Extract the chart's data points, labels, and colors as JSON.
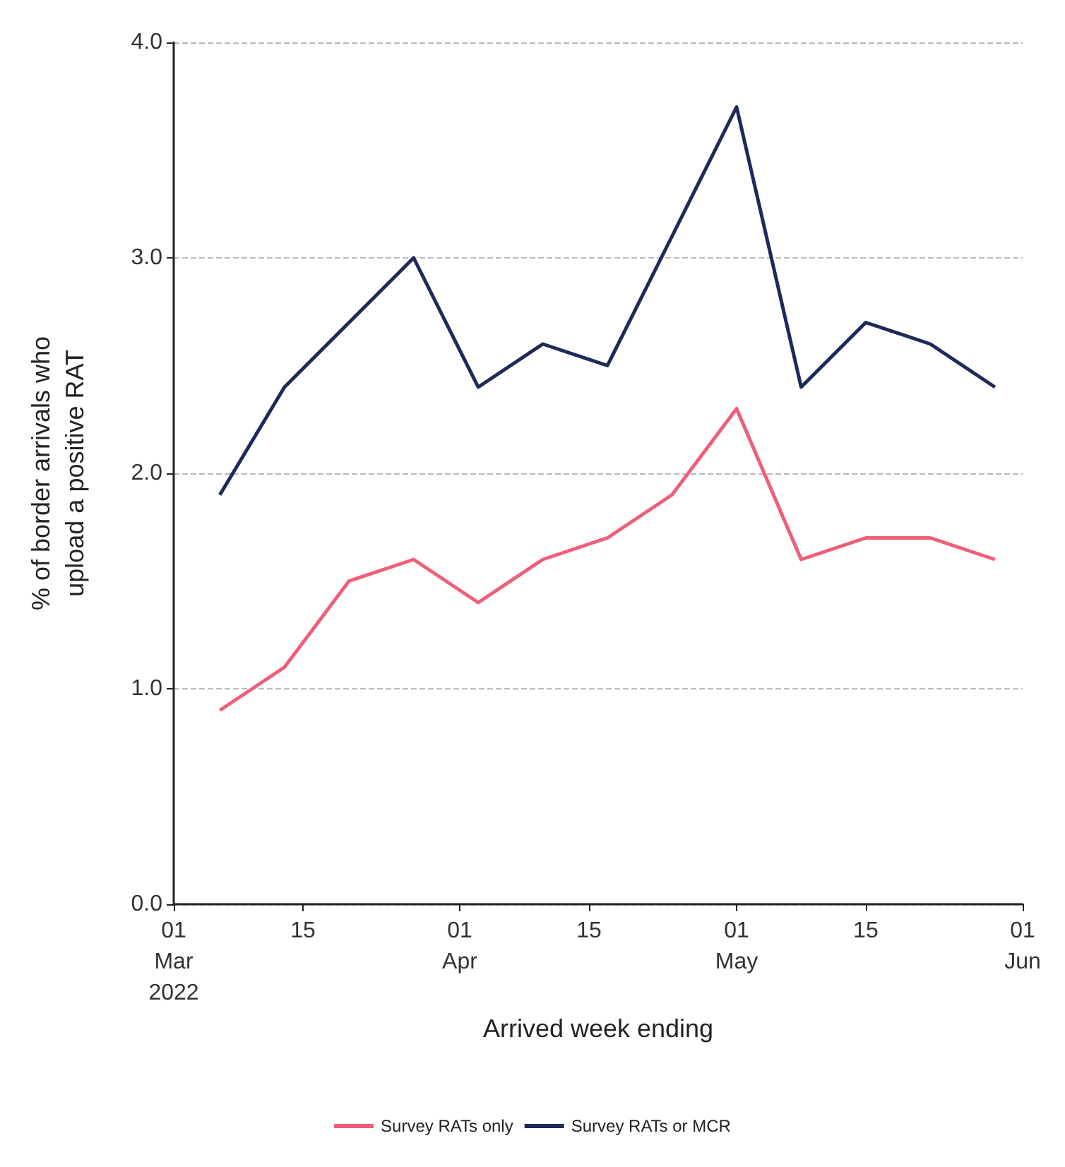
{
  "chart_data": {
    "type": "line",
    "xlabel": "Arrived week ending",
    "ylabel": "% of border arrivals who\nupload a positive RAT",
    "x": [
      "2022-03-06",
      "2022-03-13",
      "2022-03-20",
      "2022-03-27",
      "2022-04-03",
      "2022-04-10",
      "2022-04-17",
      "2022-04-24",
      "2022-05-01",
      "2022-05-08",
      "2022-05-15",
      "2022-05-22",
      "2022-05-29"
    ],
    "series": [
      {
        "name": "Survey RATs only",
        "color": "#ee5f7a",
        "values": [
          0.9,
          1.1,
          1.5,
          1.6,
          1.4,
          1.6,
          1.7,
          1.9,
          2.3,
          1.6,
          1.7,
          1.7,
          1.6
        ]
      },
      {
        "name": "Survey RATs or MCR",
        "color": "#1f2a5a",
        "values": [
          1.9,
          2.4,
          2.7,
          3.0,
          2.4,
          2.6,
          2.5,
          3.1,
          3.7,
          2.4,
          2.7,
          2.6,
          2.4
        ]
      }
    ],
    "xlim": [
      "2022-03-01",
      "2022-06-01"
    ],
    "xticks": [
      {
        "value": "2022-03-01",
        "label": "01\nMar\n2022"
      },
      {
        "value": "2022-03-15",
        "label": "15"
      },
      {
        "value": "2022-04-01",
        "label": "01\nApr"
      },
      {
        "value": "2022-04-15",
        "label": "15"
      },
      {
        "value": "2022-05-01",
        "label": "01\nMay"
      },
      {
        "value": "2022-05-15",
        "label": "15"
      },
      {
        "value": "2022-06-01",
        "label": "01\nJun"
      }
    ],
    "ylim": [
      0,
      4
    ],
    "yticks": [
      {
        "value": 0,
        "label": "0.0"
      },
      {
        "value": 1,
        "label": "1.0"
      },
      {
        "value": 2,
        "label": "2.0"
      },
      {
        "value": 3,
        "label": "3.0"
      },
      {
        "value": 4,
        "label": "4.0"
      }
    ],
    "grid": "y",
    "legend": "bottom",
    "marker": "none",
    "line_style": "solid"
  }
}
